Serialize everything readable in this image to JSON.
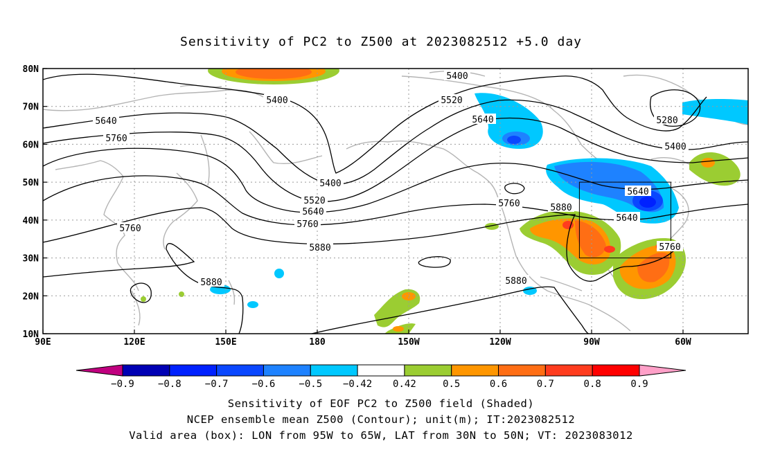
{
  "title": "Sensitivity of PC2 to Z500 at 2023082512 +5.0 day",
  "axes": {
    "lat_labels": [
      "80N",
      "70N",
      "60N",
      "50N",
      "40N",
      "30N",
      "20N",
      "10N"
    ],
    "lon_labels": [
      "90E",
      "120E",
      "150E",
      "180",
      "150W",
      "120W",
      "90W",
      "60W"
    ]
  },
  "colorbar": {
    "labels": [
      "-0.9",
      "-0.8",
      "-0.7",
      "-0.6",
      "-0.5",
      "-0.42",
      "0.42",
      "0.5",
      "0.6",
      "0.7",
      "0.8",
      "0.9"
    ],
    "colors": [
      "#c0007f",
      "#0000b4",
      "#0021ff",
      "#0a47ff",
      "#1e82ff",
      "#00c8ff",
      "#ffffff",
      "#9bcd32",
      "#ff9600",
      "#ff6e14",
      "#ff3c1e",
      "#ff0000",
      "#ffa0c8"
    ]
  },
  "contour_labels": [
    "5400",
    "5400",
    "5520",
    "5640",
    "5640",
    "5760",
    "5400",
    "5520",
    "5640",
    "5760",
    "5760",
    "5880",
    "5760",
    "5880",
    "5640",
    "5280",
    "5400",
    "5640",
    "5760",
    "5880",
    "5880"
  ],
  "valid_area": {
    "lon_from": "95W",
    "lon_to": "65W",
    "lat_from": "30N",
    "lat_to": "50N"
  },
  "captions": [
    "Sensitivity of EOF PC2 to Z500 field (Shaded)",
    "NCEP ensemble mean Z500 (Contour); unit(m); IT:2023082512",
    "Valid area (box): LON from 95W to 65W, LAT from 30N to 50N; VT: 2023083012"
  ]
}
